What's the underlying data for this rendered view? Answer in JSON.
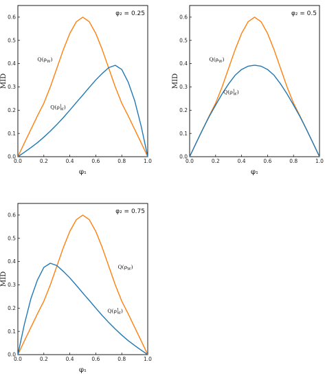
{
  "chart_data": [
    {
      "type": "line",
      "param_label": "φ₂ = 0.25",
      "xlabel": "φ₁",
      "ylabel": "MID",
      "xlim": [
        0,
        1
      ],
      "ylim": [
        0,
        0.65
      ],
      "xticks": [
        "0.0",
        "0.2",
        "0.4",
        "0.6",
        "0.8",
        "1.0"
      ],
      "yticks": [
        "0.0",
        "0.1",
        "0.2",
        "0.3",
        "0.4",
        "0.5",
        "0.6"
      ],
      "series": [
        {
          "name": "Q(ρ_W)",
          "color": "#ff7f0e",
          "x": [
            0,
            0.05,
            0.1,
            0.15,
            0.2,
            0.25,
            0.3,
            0.35,
            0.4,
            0.45,
            0.5,
            0.55,
            0.6,
            0.65,
            0.7,
            0.75,
            0.8,
            0.85,
            0.9,
            0.95,
            1.0
          ],
          "y": [
            0,
            0.059,
            0.117,
            0.175,
            0.23,
            0.3,
            0.38,
            0.46,
            0.53,
            0.58,
            0.6,
            0.58,
            0.53,
            0.46,
            0.38,
            0.3,
            0.23,
            0.175,
            0.117,
            0.059,
            0
          ]
        },
        {
          "name": "Q(ρ_W^1)",
          "color": "#1f77b4",
          "x": [
            0,
            0.05,
            0.1,
            0.15,
            0.2,
            0.25,
            0.3,
            0.35,
            0.4,
            0.45,
            0.5,
            0.55,
            0.6,
            0.65,
            0.7,
            0.75,
            0.8,
            0.85,
            0.9,
            0.95,
            1.0
          ],
          "y": [
            0,
            0.019,
            0.039,
            0.06,
            0.084,
            0.11,
            0.138,
            0.168,
            0.2,
            0.233,
            0.265,
            0.298,
            0.33,
            0.358,
            0.383,
            0.393,
            0.375,
            0.32,
            0.24,
            0.13,
            0
          ]
        }
      ],
      "annotations": [
        "Q(ρ_W)",
        "Q(ρ_W^1)"
      ]
    },
    {
      "type": "line",
      "param_label": "φ₂ = 0.5",
      "xlabel": "φ₁",
      "ylabel": "MID",
      "xlim": [
        0,
        1
      ],
      "ylim": [
        0,
        0.65
      ],
      "xticks": [
        "0.0",
        "0.2",
        "0.4",
        "0.6",
        "0.8",
        "1.0"
      ],
      "yticks": [
        "0.0",
        "0.1",
        "0.2",
        "0.3",
        "0.4",
        "0.5",
        "0.6"
      ],
      "series": [
        {
          "name": "Q(ρ_W)",
          "color": "#ff7f0e",
          "x": [
            0,
            0.05,
            0.1,
            0.15,
            0.2,
            0.25,
            0.3,
            0.35,
            0.4,
            0.45,
            0.5,
            0.55,
            0.6,
            0.65,
            0.7,
            0.75,
            0.8,
            0.85,
            0.9,
            0.95,
            1.0
          ],
          "y": [
            0,
            0.059,
            0.117,
            0.175,
            0.23,
            0.3,
            0.38,
            0.46,
            0.53,
            0.58,
            0.6,
            0.58,
            0.53,
            0.46,
            0.38,
            0.3,
            0.23,
            0.175,
            0.117,
            0.059,
            0
          ]
        },
        {
          "name": "Q(ρ_W^1)",
          "color": "#1f77b4",
          "x": [
            0,
            0.05,
            0.1,
            0.15,
            0.2,
            0.25,
            0.3,
            0.35,
            0.4,
            0.45,
            0.5,
            0.55,
            0.6,
            0.65,
            0.7,
            0.75,
            0.8,
            0.85,
            0.9,
            0.95,
            1.0
          ],
          "y": [
            0,
            0.059,
            0.117,
            0.172,
            0.222,
            0.27,
            0.313,
            0.35,
            0.375,
            0.389,
            0.393,
            0.389,
            0.375,
            0.35,
            0.313,
            0.27,
            0.222,
            0.172,
            0.117,
            0.059,
            0
          ]
        }
      ],
      "annotations": [
        "Q(ρ_W)",
        "Q(ρ_W^1)"
      ]
    },
    {
      "type": "line",
      "param_label": "φ₂ = 0.75",
      "xlabel": "φ₁",
      "ylabel": "MID",
      "xlim": [
        0,
        1
      ],
      "ylim": [
        0,
        0.65
      ],
      "xticks": [
        "0.0",
        "0.2",
        "0.4",
        "0.6",
        "0.8",
        "1.0"
      ],
      "yticks": [
        "0.0",
        "0.1",
        "0.2",
        "0.3",
        "0.4",
        "0.5",
        "0.6"
      ],
      "series": [
        {
          "name": "Q(ρ_W)",
          "color": "#ff7f0e",
          "x": [
            0,
            0.05,
            0.1,
            0.15,
            0.2,
            0.25,
            0.3,
            0.35,
            0.4,
            0.45,
            0.5,
            0.55,
            0.6,
            0.65,
            0.7,
            0.75,
            0.8,
            0.85,
            0.9,
            0.95,
            1.0
          ],
          "y": [
            0,
            0.059,
            0.117,
            0.175,
            0.23,
            0.3,
            0.38,
            0.46,
            0.53,
            0.58,
            0.6,
            0.58,
            0.53,
            0.46,
            0.38,
            0.3,
            0.23,
            0.175,
            0.117,
            0.059,
            0
          ]
        },
        {
          "name": "Q(ρ_W^1)",
          "color": "#1f77b4",
          "x": [
            0,
            0.05,
            0.1,
            0.15,
            0.2,
            0.25,
            0.3,
            0.35,
            0.4,
            0.45,
            0.5,
            0.55,
            0.6,
            0.65,
            0.7,
            0.75,
            0.8,
            0.85,
            0.9,
            0.95,
            1.0
          ],
          "y": [
            0,
            0.13,
            0.24,
            0.32,
            0.375,
            0.393,
            0.383,
            0.358,
            0.33,
            0.298,
            0.265,
            0.233,
            0.2,
            0.168,
            0.138,
            0.11,
            0.084,
            0.06,
            0.039,
            0.019,
            0
          ]
        }
      ],
      "annotations": [
        "Q(ρ_W)",
        "Q(ρ_W^1)"
      ]
    }
  ]
}
